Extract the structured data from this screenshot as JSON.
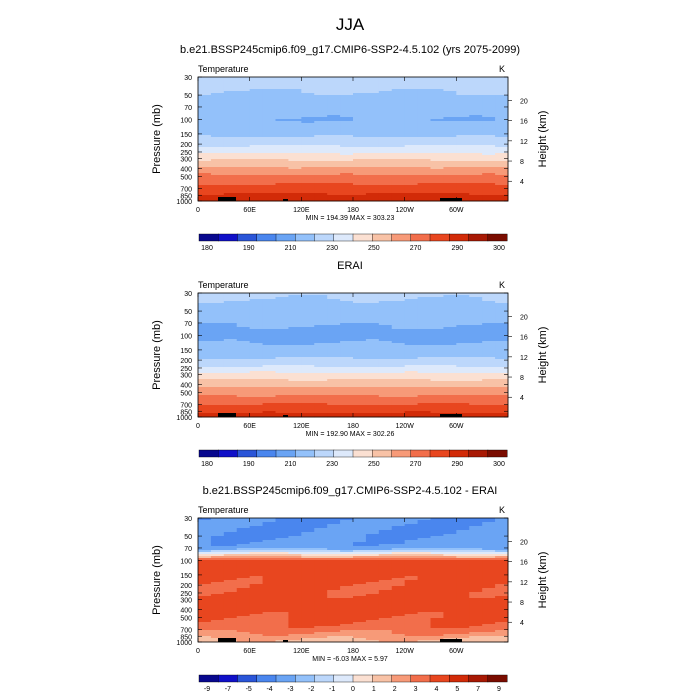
{
  "page": {
    "title": "JJA"
  },
  "chart_data": [
    {
      "type": "heatmap",
      "title": "b.e21.BSSP245cmip6.f09_g17.CMIP6-SSP2-4.5.102 (yrs 2075-2099)",
      "variable": "Temperature",
      "units": "K",
      "ylabel": "Pressure (mb)",
      "ylabel_right": "Height (km)",
      "x_ticks": [
        "0",
        "60E",
        "120E",
        "180",
        "120W",
        "60W"
      ],
      "y_ticks": [
        "30",
        "50",
        "70",
        "100",
        "150",
        "200",
        "250",
        "300",
        "400",
        "500",
        "700",
        "850",
        "1000"
      ],
      "height_ticks": [
        "20",
        "16",
        "12",
        "8",
        "4"
      ],
      "stats": "MIN = 194.39  MAX = 303.23",
      "colorbar_labels": [
        "180",
        "190",
        "210",
        "230",
        "250",
        "270",
        "290",
        "300"
      ],
      "colormap": [
        "#08088e",
        "#1010c8",
        "#2a55d8",
        "#4a86ee",
        "#6aa4f4",
        "#93c1fa",
        "#bcd7fb",
        "#dde9fb",
        "#fbe0d2",
        "#f8c2a6",
        "#f79a78",
        "#f26e4b",
        "#e8461f",
        "#d22b08",
        "#a81904",
        "#7a0c00"
      ],
      "profile_approx": [
        {
          "pressure": 30,
          "value": 225
        },
        {
          "pressure": 50,
          "value": 219
        },
        {
          "pressure": 70,
          "value": 214
        },
        {
          "pressure": 100,
          "value": 210
        },
        {
          "pressure": 150,
          "value": 217
        },
        {
          "pressure": 200,
          "value": 228
        },
        {
          "pressure": 250,
          "value": 238
        },
        {
          "pressure": 300,
          "value": 248
        },
        {
          "pressure": 400,
          "value": 262
        },
        {
          "pressure": 500,
          "value": 272
        },
        {
          "pressure": 700,
          "value": 285
        },
        {
          "pressure": 850,
          "value": 292
        },
        {
          "pressure": 1000,
          "value": 298
        }
      ]
    },
    {
      "type": "heatmap",
      "title": "ERAI",
      "variable": "Temperature",
      "units": "K",
      "ylabel": "Pressure (mb)",
      "ylabel_right": "Height (km)",
      "x_ticks": [
        "0",
        "60E",
        "120E",
        "180",
        "120W",
        "60W"
      ],
      "y_ticks": [
        "30",
        "50",
        "70",
        "100",
        "150",
        "200",
        "250",
        "300",
        "400",
        "500",
        "700",
        "850",
        "1000"
      ],
      "height_ticks": [
        "20",
        "16",
        "12",
        "8",
        "4"
      ],
      "stats": "MIN = 192.90  MAX = 302.26",
      "colorbar_labels": [
        "180",
        "190",
        "210",
        "230",
        "250",
        "270",
        "290",
        "300"
      ],
      "colormap": [
        "#08088e",
        "#1010c8",
        "#2a55d8",
        "#4a86ee",
        "#6aa4f4",
        "#93c1fa",
        "#bcd7fb",
        "#dde9fb",
        "#fbe0d2",
        "#f8c2a6",
        "#f79a78",
        "#f26e4b",
        "#e8461f",
        "#d22b08",
        "#a81904",
        "#7a0c00"
      ],
      "profile_approx": [
        {
          "pressure": 30,
          "value": 222
        },
        {
          "pressure": 50,
          "value": 216
        },
        {
          "pressure": 70,
          "value": 211
        },
        {
          "pressure": 100,
          "value": 207
        },
        {
          "pressure": 150,
          "value": 213
        },
        {
          "pressure": 200,
          "value": 222
        },
        {
          "pressure": 250,
          "value": 232
        },
        {
          "pressure": 300,
          "value": 243
        },
        {
          "pressure": 400,
          "value": 257
        },
        {
          "pressure": 500,
          "value": 267
        },
        {
          "pressure": 700,
          "value": 280
        },
        {
          "pressure": 850,
          "value": 288
        },
        {
          "pressure": 1000,
          "value": 295
        }
      ]
    },
    {
      "type": "heatmap",
      "title": "b.e21.BSSP245cmip6.f09_g17.CMIP6-SSP2-4.5.102 - ERAI",
      "variable": "Temperature",
      "units": "K",
      "ylabel": "Pressure (mb)",
      "ylabel_right": "Height (km)",
      "x_ticks": [
        "0",
        "60E",
        "120E",
        "180",
        "120W",
        "60W"
      ],
      "y_ticks": [
        "30",
        "50",
        "70",
        "100",
        "150",
        "200",
        "250",
        "300",
        "400",
        "500",
        "700",
        "850",
        "1000"
      ],
      "height_ticks": [
        "20",
        "16",
        "12",
        "8",
        "4"
      ],
      "stats": "MIN = -6.03  MAX =  5.97",
      "colorbar_labels": [
        "-9",
        "-7",
        "-5",
        "-4",
        "-3",
        "-2",
        "-1",
        "0",
        "1",
        "2",
        "3",
        "4",
        "5",
        "7",
        "9"
      ],
      "colormap": [
        "#08088e",
        "#1010c8",
        "#2a55d8",
        "#4a86ee",
        "#6aa4f4",
        "#93c1fa",
        "#bcd7fb",
        "#dde9fb",
        "#fbe0d2",
        "#f8c2a6",
        "#f79a78",
        "#f26e4b",
        "#e8461f",
        "#d22b08",
        "#a81904",
        "#7a0c00"
      ],
      "profile_approx": [
        {
          "pressure": 30,
          "value": -4
        },
        {
          "pressure": 50,
          "value": -4
        },
        {
          "pressure": 70,
          "value": -3.5
        },
        {
          "pressure": 100,
          "value": 4.5
        },
        {
          "pressure": 150,
          "value": 4.5
        },
        {
          "pressure": 200,
          "value": 4.2
        },
        {
          "pressure": 250,
          "value": 4.2
        },
        {
          "pressure": 300,
          "value": 4.5
        },
        {
          "pressure": 400,
          "value": 4.5
        },
        {
          "pressure": 500,
          "value": 4.2
        },
        {
          "pressure": 700,
          "value": 3.5
        },
        {
          "pressure": 850,
          "value": 2.5
        },
        {
          "pressure": 1000,
          "value": 1.5
        }
      ]
    }
  ]
}
